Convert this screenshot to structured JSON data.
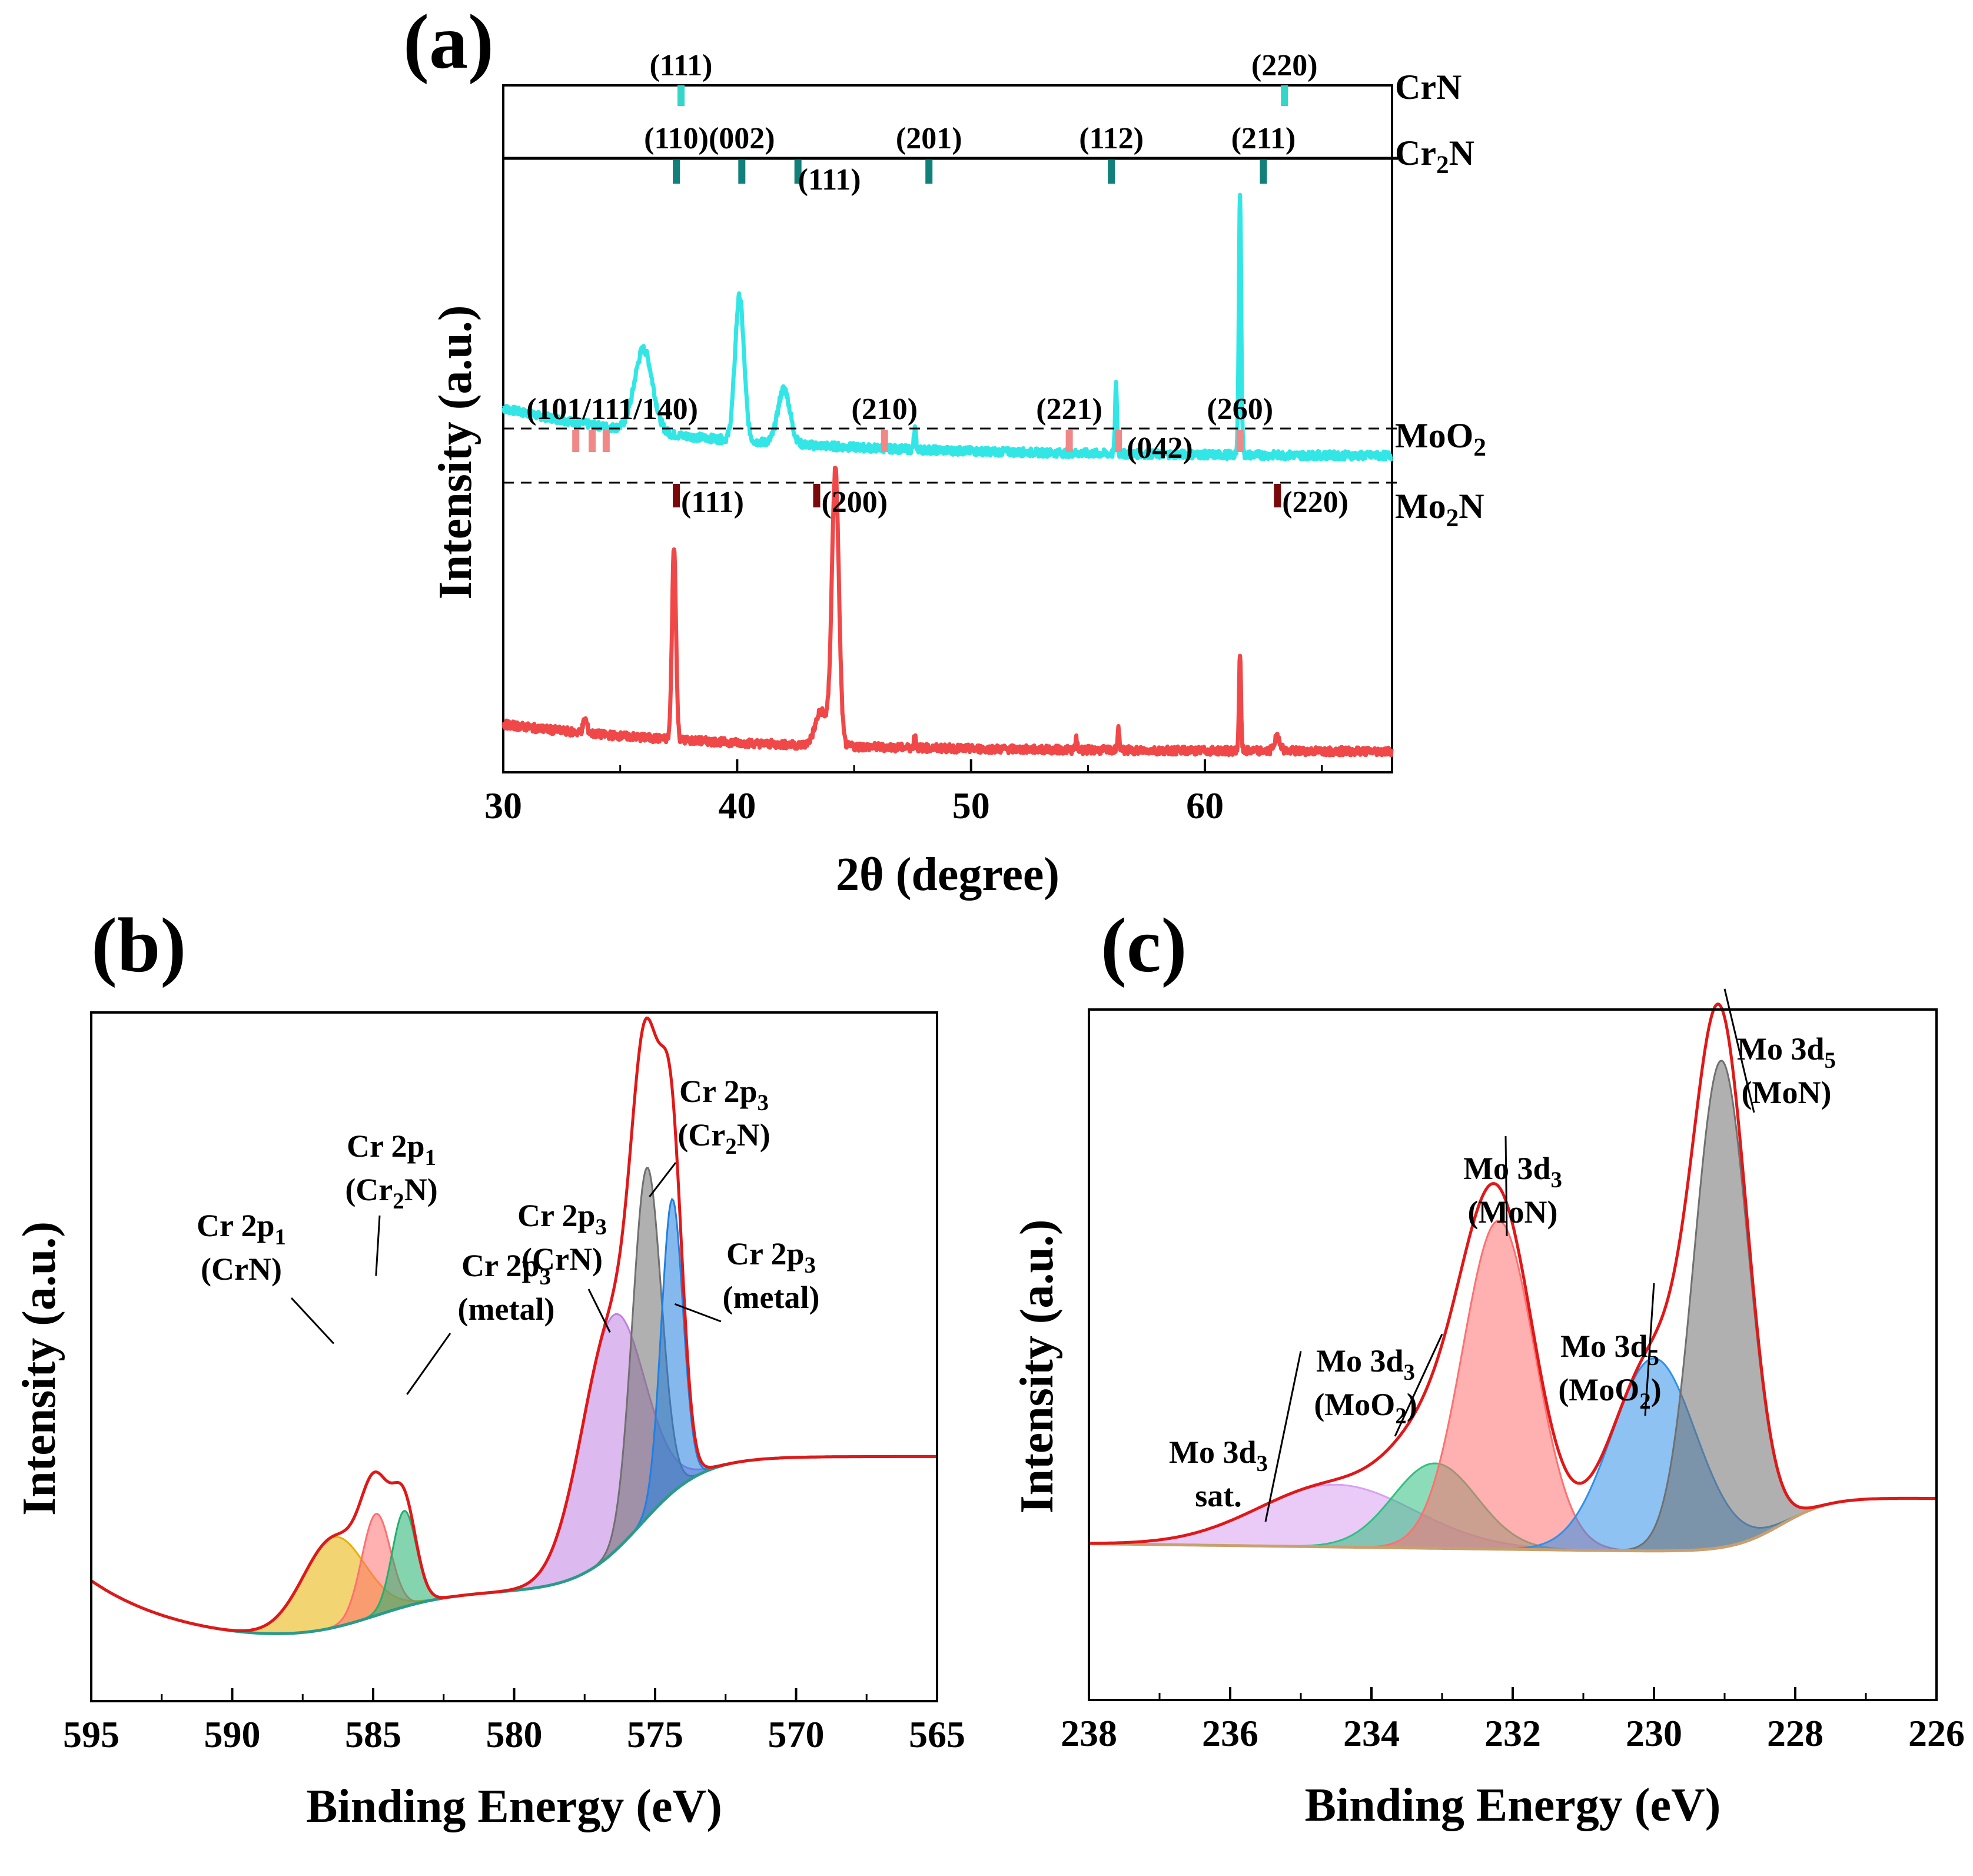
{
  "chart_data": [
    {
      "id": "a",
      "type": "line",
      "panel_label": "(a)",
      "xlabel": "2θ (degree)",
      "ylabel": "Intensity (a.u.)",
      "xlim": [
        30,
        68
      ],
      "xticks": [
        30,
        40,
        50,
        60
      ],
      "series": [
        {
          "name": "CrN/Cr2N sample (cyan)",
          "color": "#33e6e6",
          "baseline": 0.46,
          "decay": 0.07,
          "noise": 0.006,
          "peaks": [
            {
              "x": 36.0,
              "h": 0.12,
              "w": 0.9
            },
            {
              "x": 40.1,
              "h": 0.21,
              "w": 0.45
            },
            {
              "x": 42.0,
              "h": 0.08,
              "w": 0.6
            },
            {
              "x": 47.6,
              "h": 0.03,
              "w": 0.1
            },
            {
              "x": 56.2,
              "h": 0.1,
              "w": 0.1
            },
            {
              "x": 61.5,
              "h": 0.38,
              "w": 0.12
            }
          ]
        },
        {
          "name": "MoO2/Mo2N sample (red)",
          "color": "#f04848",
          "baseline": 0.03,
          "decay": 0.04,
          "noise": 0.006,
          "peaks": [
            {
              "x": 33.5,
              "h": 0.02,
              "w": 0.2
            },
            {
              "x": 37.3,
              "h": 0.28,
              "w": 0.2
            },
            {
              "x": 44.2,
              "h": 0.4,
              "w": 0.35
            },
            {
              "x": 43.6,
              "h": 0.05,
              "w": 0.6
            },
            {
              "x": 47.6,
              "h": 0.02,
              "w": 0.1
            },
            {
              "x": 54.5,
              "h": 0.015,
              "w": 0.1
            },
            {
              "x": 56.3,
              "h": 0.03,
              "w": 0.1
            },
            {
              "x": 61.5,
              "h": 0.14,
              "w": 0.1
            },
            {
              "x": 63.1,
              "h": 0.02,
              "w": 0.3
            }
          ]
        }
      ],
      "reference_phases": [
        {
          "phase": "CrN",
          "label_base": "CrN",
          "label_sub": "",
          "color": "#33d6c8",
          "dashed": false,
          "lines": [
            {
              "x": 37.6,
              "hkl": "(111)"
            },
            {
              "x": 63.4,
              "hkl": "(220)"
            }
          ]
        },
        {
          "phase": "Cr2N",
          "label_base": "Cr",
          "label_sub": "2",
          "label_tail": "N",
          "color": "#12807a",
          "dashed": false,
          "lines": [
            {
              "x": 37.4,
              "hkl": "(110)"
            },
            {
              "x": 40.2,
              "hkl": "(002)"
            },
            {
              "x": 42.6,
              "hkl": "(111)"
            },
            {
              "x": 48.2,
              "hkl": "(201)"
            },
            {
              "x": 56.0,
              "hkl": "(112)"
            },
            {
              "x": 62.5,
              "hkl": "(211)"
            }
          ]
        },
        {
          "phase": "MoO2",
          "label_base": "MoO",
          "label_sub": "2",
          "label_tail": "",
          "color": "#f08888",
          "dashed": true,
          "lines": [
            {
              "x": 33.1,
              "hkl": "(101/111/140)"
            },
            {
              "x": 33.8,
              "hkl": ""
            },
            {
              "x": 34.4,
              "hkl": ""
            },
            {
              "x": 46.3,
              "hkl": "(210)"
            },
            {
              "x": 54.2,
              "hkl": "(221)"
            },
            {
              "x": 56.3,
              "hkl": "(042)"
            },
            {
              "x": 61.5,
              "hkl": "(260)"
            }
          ]
        },
        {
          "phase": "Mo2N",
          "label_base": "Mo",
          "label_sub": "2",
          "label_tail": "N",
          "color": "#7a0a0a",
          "dashed": true,
          "lines": [
            {
              "x": 37.4,
              "hkl": "(111)"
            },
            {
              "x": 43.4,
              "hkl": "(200)"
            },
            {
              "x": 63.1,
              "hkl": "(220)"
            }
          ]
        }
      ]
    },
    {
      "id": "b",
      "type": "area",
      "panel_label": "(b)",
      "xlabel": "Binding Energy (eV)",
      "ylabel": "Intensity (a.u.)",
      "xlim": [
        595,
        565
      ],
      "xticks": [
        595,
        590,
        585,
        580,
        575,
        570,
        565
      ],
      "envelope_color": "#e01818",
      "background_color": "#2a9a8a",
      "components": [
        {
          "name": "Cr 2p1 (CrN)",
          "center": 586.4,
          "height": 0.16,
          "fwhm": 2.6,
          "color": "#e8b000"
        },
        {
          "name": "Cr 2p1 (Cr2N)",
          "center": 584.9,
          "height": 0.18,
          "fwhm": 1.2,
          "color": "#ff7070"
        },
        {
          "name": "Cr 2p3 (metal)",
          "center": 583.9,
          "height": 0.17,
          "fwhm": 1.0,
          "color": "#20b070"
        },
        {
          "name": "Cr 2p3 (CrN)",
          "center": 576.5,
          "height": 0.42,
          "fwhm": 2.6,
          "color": "#c080e0"
        },
        {
          "name": "Cr 2p3 (Cr2N)",
          "center": 575.3,
          "height": 0.62,
          "fwhm": 1.2,
          "color": "#707070"
        },
        {
          "name": "Cr 2p3 (metal)",
          "center": 574.4,
          "height": 0.52,
          "fwhm": 0.9,
          "color": "#2080e0"
        }
      ],
      "annotations": [
        {
          "lines": [
            {
              "base": "Cr  2p",
              "sub": "1"
            },
            {
              "base": "(CrN)",
              "sub": ""
            }
          ],
          "target": [
            586.4,
            0.56
          ]
        },
        {
          "lines": [
            {
              "base": "Cr  2p",
              "sub": "1"
            },
            {
              "base": "(Cr",
              "sub": "2",
              "tail": "N)"
            }
          ],
          "target": [
            584.9,
            0.68
          ]
        },
        {
          "lines": [
            {
              "base": "Cr  2p",
              "sub": "3"
            },
            {
              "base": "(metal)",
              "sub": ""
            }
          ],
          "target": [
            583.8,
            0.47
          ]
        },
        {
          "lines": [
            {
              "base": "Cr  2p",
              "sub": "3"
            },
            {
              "base": "(CrN)",
              "sub": ""
            }
          ],
          "target": [
            576.6,
            0.58
          ]
        },
        {
          "lines": [
            {
              "base": "Cr  2p",
              "sub": "3"
            },
            {
              "base": "(Cr",
              "sub": "2",
              "tail": "N)"
            }
          ],
          "target": [
            575.2,
            0.82
          ]
        },
        {
          "lines": [
            {
              "base": "Cr  2p",
              "sub": "3"
            },
            {
              "base": "(metal)",
              "sub": ""
            }
          ],
          "target": [
            574.3,
            0.63
          ]
        }
      ]
    },
    {
      "id": "c",
      "type": "area",
      "panel_label": "(c)",
      "xlabel": "Binding Energy (eV)",
      "ylabel": "Intensity (a.u.)",
      "xlim": [
        238,
        226
      ],
      "xticks": [
        238,
        236,
        234,
        232,
        230,
        228,
        226
      ],
      "envelope_color": "#e01818",
      "background_color": "#c8a070",
      "components": [
        {
          "name": "Mo 3d3 sat.",
          "center": 234.5,
          "height": 0.11,
          "fwhm": 2.6,
          "color": "#d8a0f0"
        },
        {
          "name": "Mo 3d3 (MoO2)",
          "center": 233.1,
          "height": 0.15,
          "fwhm": 1.4,
          "color": "#30c080"
        },
        {
          "name": "Mo 3d3 (MoN)",
          "center": 232.2,
          "height": 0.58,
          "fwhm": 1.2,
          "color": "#ff7070"
        },
        {
          "name": "Mo 3d5 (MoO2)",
          "center": 230.0,
          "height": 0.34,
          "fwhm": 1.4,
          "color": "#3090e8"
        },
        {
          "name": "Mo 3d5 (MoN)",
          "center": 229.05,
          "height": 0.86,
          "fwhm": 0.9,
          "color": "#707070"
        }
      ],
      "annotations": [
        {
          "lines": [
            {
              "base": "Mo 3d",
              "sub": "3"
            },
            {
              "base": "sat.",
              "sub": ""
            }
          ],
          "target": [
            235.0,
            0.36
          ]
        },
        {
          "lines": [
            {
              "base": "Mo 3d",
              "sub": "3"
            },
            {
              "base": "(MoO",
              "sub": "2",
              "tail": ")"
            }
          ],
          "target": [
            233.0,
            0.39
          ]
        },
        {
          "lines": [
            {
              "base": "Mo 3d",
              "sub": "3"
            },
            {
              "base": "(MoN)",
              "sub": ""
            }
          ],
          "target": [
            232.1,
            0.74
          ]
        },
        {
          "lines": [
            {
              "base": "Mo 3d",
              "sub": "5"
            },
            {
              "base": "(MoO",
              "sub": "2",
              "tail": ")"
            }
          ],
          "target": [
            230.0,
            0.48
          ]
        },
        {
          "lines": [
            {
              "base": "Mo 3d",
              "sub": "5"
            },
            {
              "base": "(MoN)",
              "sub": ""
            }
          ],
          "target": [
            229.0,
            1.0
          ]
        }
      ]
    }
  ]
}
